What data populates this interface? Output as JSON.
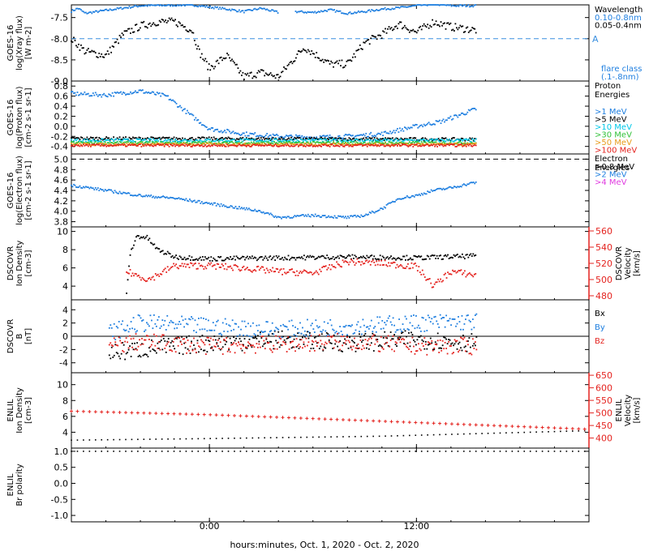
{
  "time_axis": {
    "label": "hours:minutes, Oct.  1, 2020 - Oct.  2, 2020",
    "tick_labels": [
      "0:00",
      "12:00"
    ],
    "tick_hours": [
      0,
      12
    ],
    "range_hours": [
      -8,
      22
    ]
  },
  "colors": {
    "black": "#000000",
    "blue": "#1f7fe0",
    "cyan": "#00c8e8",
    "green": "#33c23a",
    "orange": "#e89c1c",
    "red": "#e4231f",
    "magenta": "#e03ce0",
    "dash_blue": "#3a8fe0"
  },
  "chart_data": [
    {
      "id": "xray",
      "type": "scatter",
      "ylabel": [
        "GOES-16",
        "log(Xray flux)",
        "[W m-2]"
      ],
      "ylim": [
        -9.0,
        -7.2
      ],
      "yticks": [
        -7.5,
        -8.0,
        -8.5,
        -9.0
      ],
      "ytick_labels": [
        "-7.5",
        "-8.0",
        "-8.5",
        "-9.0"
      ],
      "legend_title": [
        "Wavelength"
      ],
      "legend": [
        {
          "text": "0.10-0.8nm",
          "color": "blue"
        },
        {
          "text": "0.05-0.4nm",
          "color": "black"
        }
      ],
      "legend_extra": [
        {
          "text": "flare class",
          "color": "blue"
        },
        {
          "text": "(.1-.8nm)",
          "color": "blue"
        }
      ],
      "hline": {
        "y": -8.0,
        "label": "A",
        "color": "dash_blue",
        "dash": true
      },
      "series": [
        {
          "color": "blue",
          "knots": [
            [
              -8,
              -7.35
            ],
            [
              -7.6,
              -7.28
            ],
            [
              -7.2,
              -7.4
            ],
            [
              -6,
              -7.33
            ],
            [
              -4,
              -7.22
            ],
            [
              -1,
              -7.2
            ],
            [
              1,
              -7.3
            ],
            [
              2,
              -7.36
            ],
            [
              3,
              -7.28
            ],
            [
              4,
              -7.38
            ]
          ],
          "noise": 0.025
        },
        {
          "color": "blue",
          "knots": [
            [
              5,
              -7.36
            ],
            [
              6,
              -7.38
            ],
            [
              7,
              -7.32
            ],
            [
              8,
              -7.4
            ],
            [
              9,
              -7.36
            ],
            [
              10,
              -7.3
            ],
            [
              11,
              -7.27
            ],
            [
              12,
              -7.22
            ],
            [
              13,
              -7.18
            ],
            [
              14,
              -7.22
            ],
            [
              15.5,
              -7.22
            ]
          ],
          "noise": 0.025
        },
        {
          "color": "black",
          "knots": [
            [
              -8,
              -8.0
            ],
            [
              -7.2,
              -8.3
            ],
            [
              -6,
              -8.4
            ],
            [
              -5,
              -7.9
            ],
            [
              -4,
              -7.7
            ],
            [
              -3,
              -7.6
            ],
            [
              -2,
              -7.6
            ],
            [
              -1,
              -7.8
            ],
            [
              -0.6,
              -8.3
            ],
            [
              0,
              -8.7
            ],
            [
              1,
              -8.4
            ],
            [
              2,
              -8.9
            ],
            [
              3,
              -8.8
            ],
            [
              4,
              -8.9
            ],
            [
              5.5,
              -8.2
            ],
            [
              7,
              -8.6
            ],
            [
              8,
              -8.6
            ],
            [
              9,
              -8.1
            ],
            [
              10,
              -7.9
            ],
            [
              11,
              -7.65
            ],
            [
              12,
              -7.85
            ],
            [
              13,
              -7.6
            ],
            [
              14,
              -7.72
            ],
            [
              15.5,
              -7.8
            ]
          ],
          "noise": 0.09
        }
      ]
    },
    {
      "id": "proton",
      "type": "scatter",
      "ylabel": [
        "GOES-16",
        "log(Proton flux)",
        "[cm-2 s-1 sr-1]"
      ],
      "ylim": [
        -0.55,
        0.9
      ],
      "yticks": [
        0.8,
        0.6,
        0.4,
        0.2,
        0.0,
        -0.2,
        -0.4
      ],
      "ytick_labels": [
        "0.8",
        "0.6",
        "0.4",
        "0.2",
        "0.0",
        "-0.2",
        "-0.4"
      ],
      "legend_title": [
        "Proton",
        "Energies"
      ],
      "legend": [
        {
          "text": ">1 MeV",
          "color": "blue"
        },
        {
          "text": ">5 MeV",
          "color": "black"
        },
        {
          "text": ">10 MeV",
          "color": "cyan"
        },
        {
          "text": ">30 MeV",
          "color": "green"
        },
        {
          "text": ">50 MeV",
          "color": "orange"
        },
        {
          "text": ">100 MeV",
          "color": "red"
        }
      ],
      "series": [
        {
          "color": "blue",
          "knots": [
            [
              -8,
              0.65
            ],
            [
              -6,
              0.62
            ],
            [
              -4,
              0.7
            ],
            [
              -2.5,
              0.6
            ],
            [
              -1,
              0.2
            ],
            [
              0,
              -0.05
            ],
            [
              2,
              -0.15
            ],
            [
              4,
              -0.2
            ],
            [
              6,
              -0.22
            ],
            [
              8,
              -0.2
            ],
            [
              10,
              -0.15
            ],
            [
              12,
              0.0
            ],
            [
              13.5,
              0.1
            ],
            [
              15.5,
              0.35
            ]
          ],
          "noise": 0.04
        },
        {
          "color": "black",
          "knots": [
            [
              -8,
              -0.24
            ],
            [
              15.5,
              -0.26
            ]
          ],
          "noise": 0.03
        },
        {
          "color": "cyan",
          "knots": [
            [
              -8,
              -0.28
            ],
            [
              15.5,
              -0.28
            ]
          ],
          "noise": 0.03
        },
        {
          "color": "green",
          "knots": [
            [
              -8,
              -0.33
            ],
            [
              15.5,
              -0.33
            ]
          ],
          "noise": 0.025
        },
        {
          "color": "orange",
          "knots": [
            [
              -8,
              -0.36
            ],
            [
              15.5,
              -0.36
            ]
          ],
          "noise": 0.025
        },
        {
          "color": "red",
          "knots": [
            [
              -8,
              -0.38
            ],
            [
              15.5,
              -0.38
            ]
          ],
          "noise": 0.025
        }
      ]
    },
    {
      "id": "electron",
      "type": "scatter",
      "ylabel": [
        "GOES-16",
        "log(Electron flux)",
        "[cm-2 s-1 sr-1]"
      ],
      "ylim": [
        3.7,
        5.1
      ],
      "yticks": [
        5.0,
        4.8,
        4.6,
        4.4,
        4.2,
        4.0,
        3.8
      ],
      "ytick_labels": [
        "5.0",
        "4.8",
        "4.6",
        "4.4",
        "4.2",
        "4.0",
        "3.8"
      ],
      "legend_title": [
        "Electron",
        "Energies"
      ],
      "legend": [
        {
          "text": ">0.8 MeV",
          "color": "black"
        },
        {
          "text": ">2 MeV",
          "color": "blue"
        },
        {
          "text": ">4 MeV",
          "color": "magenta"
        }
      ],
      "hline": {
        "y": 5.0,
        "color": "black",
        "dash": true
      },
      "series": [
        {
          "color": "blue",
          "knots": [
            [
              -8,
              4.5
            ],
            [
              -6,
              4.4
            ],
            [
              -4,
              4.3
            ],
            [
              -2,
              4.25
            ],
            [
              0,
              4.15
            ],
            [
              2,
              4.05
            ],
            [
              3,
              4.0
            ],
            [
              4,
              3.88
            ],
            [
              6,
              3.92
            ],
            [
              8,
              3.88
            ],
            [
              9,
              3.92
            ],
            [
              10,
              4.05
            ],
            [
              11,
              4.25
            ],
            [
              12,
              4.3
            ],
            [
              13,
              4.4
            ],
            [
              14,
              4.45
            ],
            [
              15.5,
              4.56
            ]
          ],
          "noise": 0.025
        }
      ]
    },
    {
      "id": "dscovr-density",
      "type": "scatter",
      "ylabel": [
        "DSCOVR",
        "Ion Density",
        "[cm-3]"
      ],
      "ylim": [
        2.5,
        10.5
      ],
      "yticks": [
        10,
        8,
        6,
        4
      ],
      "ytick_labels": [
        "10",
        "8",
        "6",
        "4"
      ],
      "right_axis": {
        "label": [
          "DSCOVR",
          "Velocity",
          "[km/s]"
        ],
        "ylim": [
          475,
          565
        ],
        "yticks": [
          560,
          540,
          520,
          500,
          480
        ],
        "ytick_labels": [
          "560",
          "540",
          "520",
          "500",
          "480"
        ],
        "color": "red"
      },
      "series": [
        {
          "color": "black",
          "knots": [
            [
              -4.8,
              3.0
            ],
            [
              -4.6,
              7.5
            ],
            [
              -4.2,
              9.5
            ],
            [
              -3.6,
              9.3
            ],
            [
              -3.0,
              8.0
            ],
            [
              -2,
              7.2
            ],
            [
              0,
              7.0
            ],
            [
              4,
              7.1
            ],
            [
              8,
              7.2
            ],
            [
              12,
              7.1
            ],
            [
              15.5,
              7.3
            ]
          ],
          "noise": 0.25
        },
        {
          "color": "red",
          "axis": "right",
          "knots": [
            [
              -4.8,
              510
            ],
            [
              -4.2,
              505
            ],
            [
              -3.5,
              500
            ],
            [
              -2,
              517
            ],
            [
              0,
              517
            ],
            [
              2,
              514
            ],
            [
              4,
              510
            ],
            [
              6,
              508
            ],
            [
              8,
              522
            ],
            [
              10,
              520
            ],
            [
              12,
              516
            ],
            [
              13,
              492
            ],
            [
              14,
              510
            ],
            [
              15.5,
              505
            ]
          ],
          "noise": 4
        }
      ]
    },
    {
      "id": "dscovr-b",
      "type": "scatter",
      "ylabel": [
        "DSCOVR",
        "B",
        "[nT]"
      ],
      "ylim": [
        -5.5,
        5.5
      ],
      "yticks": [
        4,
        2,
        0,
        -2,
        -4
      ],
      "ytick_labels": [
        "4",
        "2",
        "0",
        "-2",
        "-4"
      ],
      "legend": [
        {
          "text": "Bx",
          "color": "black"
        },
        {
          "text": "By",
          "color": "blue"
        },
        {
          "text": "Bz",
          "color": "red"
        }
      ],
      "hline": {
        "y": 0,
        "color": "black",
        "dash": false
      },
      "series": [
        {
          "color": "black",
          "knots": [
            [
              -5.8,
              -2.5
            ],
            [
              -4,
              -2.0
            ],
            [
              0,
              -1.0
            ],
            [
              4,
              -0.5
            ],
            [
              8,
              -1.0
            ],
            [
              12,
              -0.5
            ],
            [
              15.5,
              -1.0
            ]
          ],
          "noise": 1.4
        },
        {
          "color": "blue",
          "knots": [
            [
              -5.8,
              0.5
            ],
            [
              -4,
              2.0
            ],
            [
              0,
              1.5
            ],
            [
              4,
              1.0
            ],
            [
              8,
              1.5
            ],
            [
              12,
              2.0
            ],
            [
              15.5,
              2.2
            ]
          ],
          "noise": 1.3
        },
        {
          "color": "red",
          "knots": [
            [
              -5.8,
              -1.5
            ],
            [
              -4,
              -0.8
            ],
            [
              0,
              -1.5
            ],
            [
              4,
              -1.2
            ],
            [
              8,
              -0.8
            ],
            [
              12,
              -1.5
            ],
            [
              15.5,
              -1.5
            ]
          ],
          "noise": 1.3
        }
      ]
    },
    {
      "id": "enlil-density",
      "type": "line",
      "ylabel": [
        "ENLIL",
        "Ion Density",
        "[cm-3]"
      ],
      "ylim": [
        2.0,
        11.5
      ],
      "yticks": [
        10,
        8,
        6,
        4
      ],
      "ytick_labels": [
        "10",
        "8",
        "6",
        "4"
      ],
      "right_axis": {
        "label": [
          "ENLIL",
          "Velocity",
          "[km/s]"
        ],
        "ylim": [
          360,
          660
        ],
        "yticks": [
          650,
          600,
          550,
          500,
          450,
          400
        ],
        "ytick_labels": [
          "650",
          "600",
          "550",
          "500",
          "450",
          "400"
        ],
        "color": "red"
      },
      "series": [
        {
          "color": "black",
          "knots": [
            [
              -8,
              3.0
            ],
            [
              0,
              3.2
            ],
            [
              10,
              3.5
            ],
            [
              22,
              4.2
            ]
          ],
          "noise": 0
        },
        {
          "color": "red",
          "axis": "right",
          "knots": [
            [
              -8,
              507
            ],
            [
              0,
              493
            ],
            [
              10,
              467
            ],
            [
              22,
              435
            ]
          ],
          "noise": 0
        }
      ]
    },
    {
      "id": "enlil-polarity",
      "type": "line",
      "ylabel": [
        "ENLIL",
        "Br polarity"
      ],
      "ylim": [
        -1.2,
        1.1
      ],
      "yticks": [
        1.0,
        0.5,
        0.0,
        -0.5,
        -1.0
      ],
      "ytick_labels": [
        "1.0",
        "0.5",
        "0.0",
        "-0.5",
        "-1.0"
      ],
      "series": [
        {
          "color": "black",
          "knots": [
            [
              -8,
              1.0
            ],
            [
              22,
              1.0
            ]
          ],
          "noise": 0
        }
      ]
    }
  ]
}
